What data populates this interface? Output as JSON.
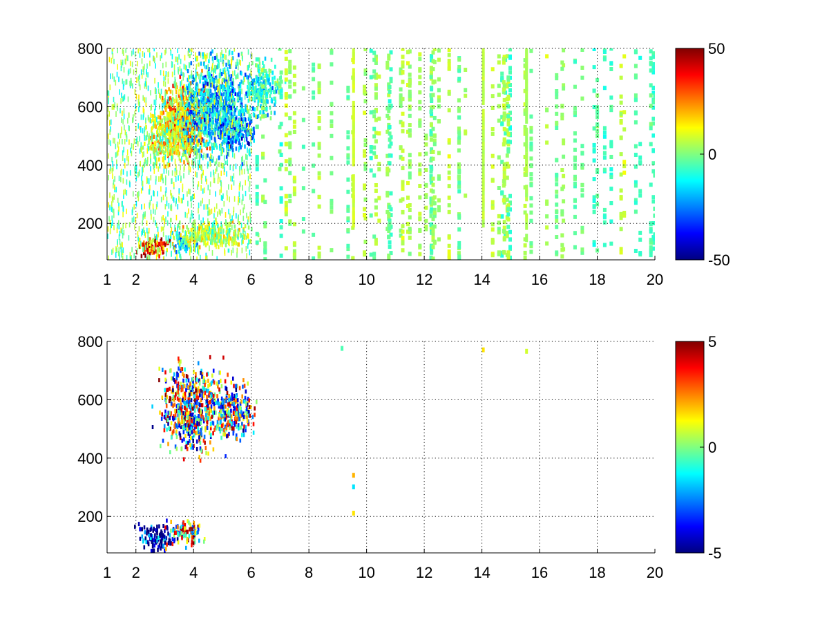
{
  "chart_data": [
    {
      "type": "heatmap",
      "title": "",
      "xlabel": "",
      "ylabel": "",
      "xlim": [
        1,
        20
      ],
      "ylim": [
        75,
        800
      ],
      "x_ticks": [
        1,
        2,
        4,
        6,
        8,
        10,
        12,
        14,
        16,
        18,
        20
      ],
      "y_ticks": [
        200,
        400,
        600,
        800
      ],
      "grid": true,
      "grid_style": "dotted",
      "colormap": "jet",
      "colorbar": {
        "placement": "right",
        "range": [
          -50,
          50
        ],
        "ticks": [
          50,
          0,
          -50
        ]
      },
      "clusters": [
        {
          "x": 3.7,
          "y": 560,
          "value": 28,
          "spread_x": 0.6,
          "spread_y": 90
        },
        {
          "x": 3.2,
          "y": 500,
          "value": 15,
          "spread_x": 0.6,
          "spread_y": 60
        },
        {
          "x": 4.8,
          "y": 600,
          "value": -22,
          "spread_x": 0.8,
          "spread_y": 110
        },
        {
          "x": 5.4,
          "y": 520,
          "value": -28,
          "spread_x": 0.4,
          "spread_y": 50
        },
        {
          "x": 6.4,
          "y": 660,
          "value": -12,
          "spread_x": 0.4,
          "spread_y": 60
        },
        {
          "x": 2.6,
          "y": 120,
          "value": 40,
          "spread_x": 0.4,
          "spread_y": 25
        },
        {
          "x": 3.6,
          "y": 130,
          "value": -18,
          "spread_x": 0.3,
          "spread_y": 25
        },
        {
          "x": 4.6,
          "y": 160,
          "value": 8,
          "spread_x": 0.9,
          "spread_y": 30
        }
      ],
      "streaks": [
        {
          "x": 9.5,
          "y": [
            200,
            800
          ],
          "value": 8
        },
        {
          "x": 14.0,
          "y": [
            200,
            800
          ],
          "value": 6
        },
        {
          "x": 15.5,
          "y": [
            150,
            800
          ],
          "value": 4
        }
      ],
      "background": {
        "x_range": [
          6,
          20
        ],
        "value_range": [
          -8,
          8
        ]
      }
    },
    {
      "type": "heatmap",
      "title": "",
      "xlabel": "",
      "ylabel": "",
      "xlim": [
        1,
        20
      ],
      "ylim": [
        75,
        800
      ],
      "x_ticks": [
        1,
        2,
        4,
        6,
        8,
        10,
        12,
        14,
        16,
        18,
        20
      ],
      "y_ticks": [
        200,
        400,
        600,
        800
      ],
      "grid": true,
      "grid_style": "dotted",
      "colormap": "jet",
      "colorbar": {
        "placement": "right",
        "range": [
          -5,
          5
        ],
        "ticks": [
          5,
          0,
          -5
        ]
      },
      "clusters": [
        {
          "x": 3.9,
          "y": 570,
          "value": 0,
          "spread_x": 0.7,
          "spread_y": 100,
          "noisy": true
        },
        {
          "x": 5.3,
          "y": 560,
          "value": 2,
          "spread_x": 0.5,
          "spread_y": 60,
          "noisy": true
        },
        {
          "x": 2.7,
          "y": 130,
          "value": -5,
          "spread_x": 0.4,
          "spread_y": 30
        },
        {
          "x": 3.7,
          "y": 140,
          "value": -2,
          "spread_x": 0.4,
          "spread_y": 30,
          "noisy": true
        }
      ],
      "isolated_points": [
        {
          "x": 14.0,
          "y": 770,
          "value": 1.5
        },
        {
          "x": 15.5,
          "y": 765,
          "value": 0.8
        },
        {
          "x": 9.5,
          "y": 210,
          "value": 1.5
        },
        {
          "x": 9.5,
          "y": 340,
          "value": 2.0
        },
        {
          "x": 9.5,
          "y": 300,
          "value": -1.5
        },
        {
          "x": 9.1,
          "y": 775,
          "value": -0.5
        }
      ]
    }
  ]
}
